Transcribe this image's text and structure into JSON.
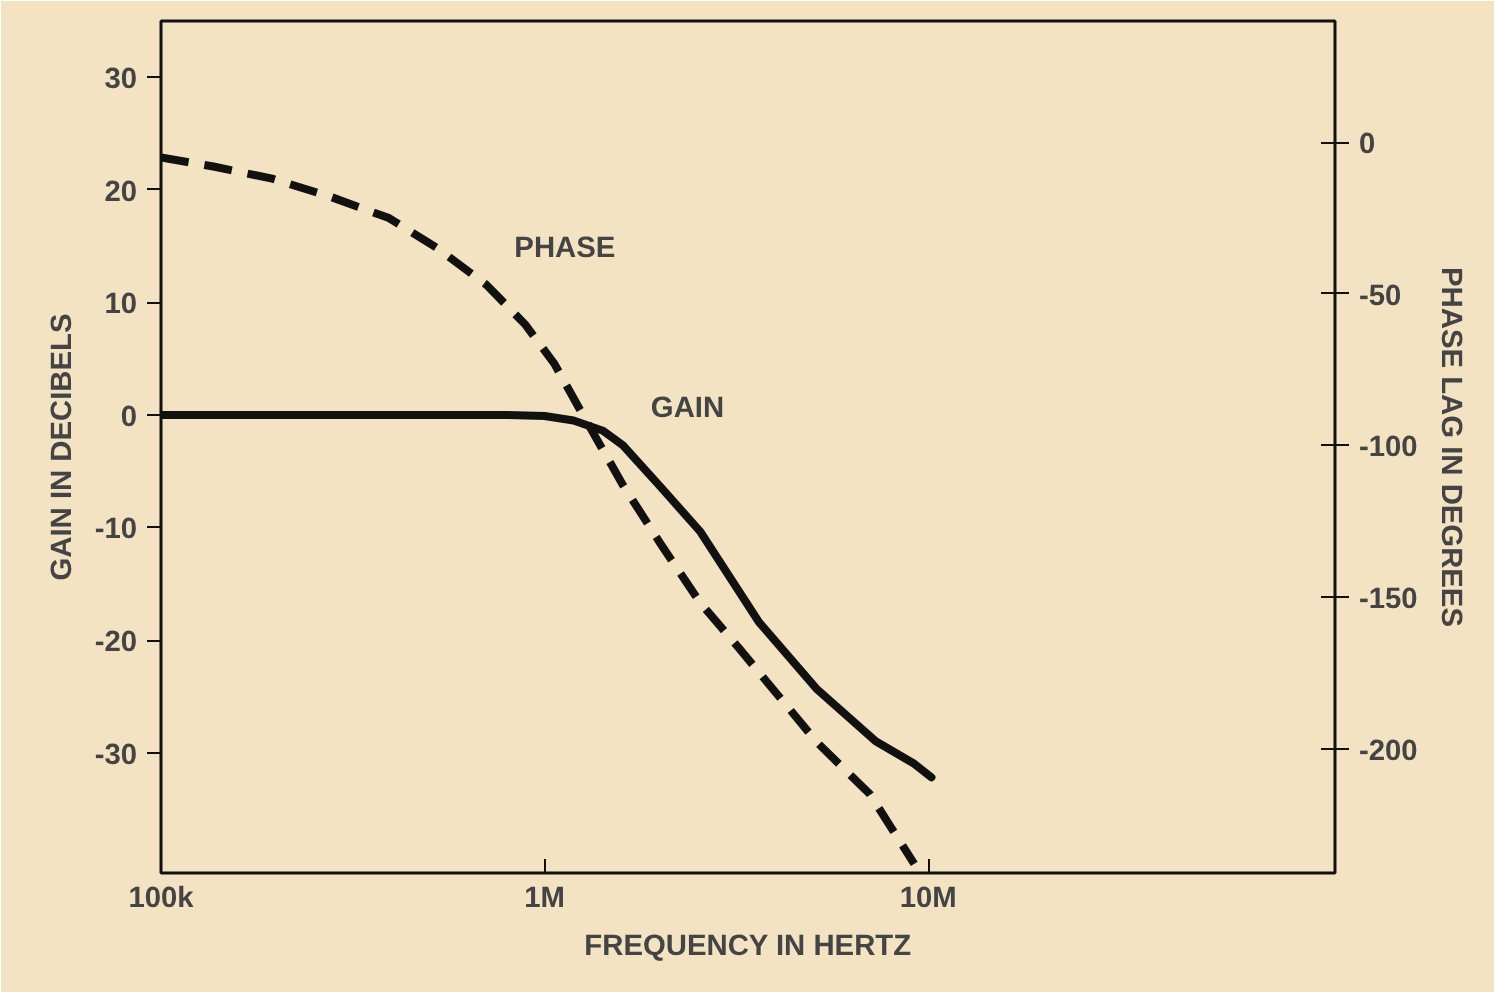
{
  "chart_data": {
    "type": "line",
    "xlabel": "FREQUENCY IN HERTZ",
    "ylabel": "GAIN IN DECIBELS",
    "y2label": "PHASE LAG IN DEGREES",
    "log": "x",
    "grid": false,
    "marker": "none",
    "xlim": [
      100000,
      115000000
    ],
    "xticks": [
      {
        "value": 100000,
        "label": "100k"
      },
      {
        "value": 1000000,
        "label": "1M"
      },
      {
        "value": 10000000,
        "label": "10M"
      }
    ],
    "ylim": [
      -40.7,
      35
    ],
    "yticks": [
      30,
      20,
      10,
      0,
      -10,
      -20,
      -30
    ],
    "y2lim": [
      -241,
      40
    ],
    "y2ticks": [
      0,
      -50,
      -100,
      -150,
      -200
    ],
    "series": [
      {
        "name": "GAIN",
        "color": "#111111",
        "line_style": "solid",
        "x": [
          100000,
          791000,
          1000000,
          1190000,
          1420000,
          1600000,
          2020000,
          2550000,
          3620000,
          5140000,
          7300000,
          9200000,
          10200000
        ],
        "values": [
          0,
          0,
          -0.1,
          -0.5,
          -1.4,
          -2.7,
          -6.5,
          -10.4,
          -18.4,
          -24.4,
          -29,
          -31,
          -32.2
        ]
      },
      {
        "name": "PHASE",
        "color": "#111111",
        "line_style": "dashed",
        "axis": "y2",
        "x": [
          100000,
          137000,
          195000,
          277000,
          393000,
          526000,
          705000,
          889000,
          1060000,
          1260000,
          1600000,
          2020000,
          2550000,
          3220000,
          5140000,
          7050000,
          9200000
        ],
        "values": [
          -5,
          -8,
          -12,
          -18,
          -25,
          -35,
          -47,
          -60,
          -73,
          -90,
          -113,
          -133,
          -152,
          -167,
          -198,
          -215,
          -238
        ]
      }
    ]
  }
}
